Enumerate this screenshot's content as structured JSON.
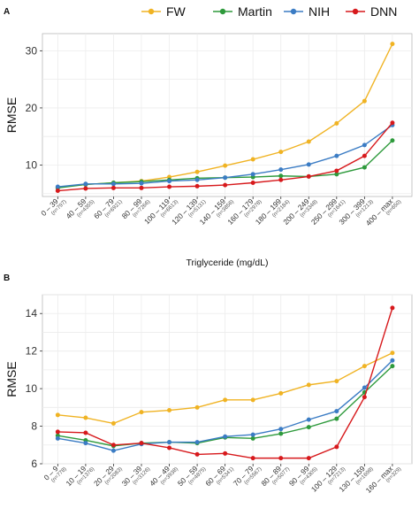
{
  "legend": [
    {
      "name": "FW",
      "color": "#F0B323"
    },
    {
      "name": "Martin",
      "color": "#2E9A3C"
    },
    {
      "name": "NIH",
      "color": "#3B7CC4"
    },
    {
      "name": "DNN",
      "color": "#D7191C"
    }
  ],
  "chart_data": [
    {
      "panel": "A",
      "type": "line",
      "xlabel": "Triglyceride (mg/dL)",
      "ylabel": "RMSE",
      "ylim": [
        4.5,
        33
      ],
      "yticks": [
        10,
        20,
        30
      ],
      "grid": true,
      "legend_position": "top-right",
      "categories": [
        "0 – 39",
        "40 – 59",
        "60 – 79",
        "80 – 99",
        "100 – 119",
        "120 – 139",
        "140 – 159",
        "160 – 179",
        "180 – 199",
        "200 – 249",
        "250 – 299",
        "300 – 399",
        "400 – max"
      ],
      "counts": [
        "(n=797)",
        "(n=4355)",
        "(n=6921)",
        "(n=7266)",
        "(n=6613)",
        "(n=5131)",
        "(n=3856)",
        "(n=2978)",
        "(n=2184)",
        "(n=3348)",
        "(n=1641)",
        "(n=1213)",
        "(n=650)"
      ],
      "series": [
        {
          "name": "FW",
          "color": "#F0B323",
          "values": [
            6.1,
            6.6,
            6.9,
            7.2,
            7.9,
            8.8,
            9.9,
            11.0,
            12.3,
            14.1,
            17.3,
            21.2,
            31.2
          ]
        },
        {
          "name": "Martin",
          "color": "#2E9A3C",
          "values": [
            6.0,
            6.6,
            6.9,
            7.1,
            7.4,
            7.7,
            7.8,
            7.9,
            8.1,
            8.0,
            8.4,
            9.6,
            14.3
          ]
        },
        {
          "name": "NIH",
          "color": "#3B7CC4",
          "values": [
            6.2,
            6.7,
            6.7,
            6.8,
            7.2,
            7.4,
            7.8,
            8.4,
            9.2,
            10.1,
            11.6,
            13.5,
            17.0
          ]
        },
        {
          "name": "DNN",
          "color": "#D7191C",
          "values": [
            5.5,
            5.9,
            6.0,
            6.0,
            6.2,
            6.3,
            6.5,
            6.9,
            7.4,
            8.0,
            9.0,
            11.6,
            17.4
          ]
        }
      ]
    },
    {
      "panel": "B",
      "type": "line",
      "xlabel": "Non-HDL-C (mg/dL)",
      "ylabel": "RMSE",
      "ylim": [
        6,
        15
      ],
      "yticks": [
        6,
        8,
        10,
        12,
        14
      ],
      "grid": true,
      "categories": [
        "0 – 9",
        "10 – 19",
        "20 – 29",
        "30 – 39",
        "40 – 49",
        "50 – 59",
        "60 – 69",
        "70 – 79",
        "80 – 89",
        "90 – 99",
        "100 – 129",
        "130 – 159",
        "160 – max"
      ],
      "counts": [
        "(n=778)",
        "(n=1376)",
        "(n=2083)",
        "(n=3126)",
        "(n=3938)",
        "(n=4875)",
        "(n=5341)",
        "(n=5567)",
        "(n=5077)",
        "(n=4305)",
        "(n=7213)",
        "(n=1698)",
        "(n=329)"
      ],
      "series": [
        {
          "name": "FW",
          "color": "#F0B323",
          "values": [
            8.6,
            8.45,
            8.15,
            8.75,
            8.85,
            9.0,
            9.4,
            9.4,
            9.75,
            10.2,
            10.4,
            11.2,
            11.9
          ]
        },
        {
          "name": "Martin",
          "color": "#2E9A3C",
          "values": [
            7.5,
            7.25,
            6.95,
            7.1,
            7.15,
            7.1,
            7.4,
            7.35,
            7.6,
            7.95,
            8.4,
            9.8,
            11.2
          ]
        },
        {
          "name": "NIH",
          "color": "#3B7CC4",
          "values": [
            7.35,
            7.1,
            6.7,
            7.05,
            7.15,
            7.15,
            7.45,
            7.55,
            7.85,
            8.35,
            8.8,
            10.05,
            11.5
          ]
        },
        {
          "name": "DNN",
          "color": "#D7191C",
          "values": [
            7.7,
            7.65,
            7.0,
            7.1,
            6.85,
            6.5,
            6.55,
            6.3,
            6.3,
            6.3,
            6.9,
            9.55,
            14.3
          ]
        }
      ]
    }
  ]
}
